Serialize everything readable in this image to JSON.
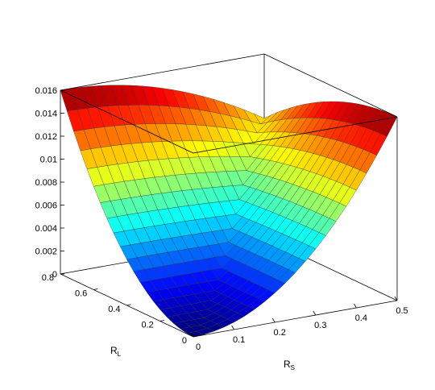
{
  "chart_data": {
    "type": "surface3d",
    "title": "",
    "x_axis": {
      "label_main": "R",
      "label_sub": "S",
      "range": [
        0,
        0.5
      ],
      "ticks": [
        "0",
        "0.1",
        "0.2",
        "0.3",
        "0.4",
        "0.5"
      ]
    },
    "y_axis": {
      "label_main": "R",
      "label_sub": "L",
      "range": [
        0,
        0.8
      ],
      "ticks": [
        "0",
        "0.2",
        "0.4",
        "0.6",
        "0.8"
      ]
    },
    "z_axis": {
      "label": "",
      "range": [
        0,
        0.016
      ],
      "ticks": [
        "0",
        "0.002",
        "0.004",
        "0.006",
        "0.008",
        "0.01",
        "0.012",
        "0.014",
        "0.016"
      ]
    },
    "surface": {
      "description_of_shape": "valley with minimum near the low corner of R_S and R_L; rises to ~0.016 at R_S=0 high R_L and at R_S=0.5 low R_L",
      "x": [
        0,
        0.025,
        0.05,
        0.075,
        0.1,
        0.125,
        0.15,
        0.175,
        0.2,
        0.225,
        0.25,
        0.275,
        0.3,
        0.325,
        0.35,
        0.375,
        0.4,
        0.425,
        0.45,
        0.475,
        0.5
      ],
      "y": [
        0,
        0.04,
        0.08,
        0.12,
        0.16,
        0.2,
        0.24,
        0.28,
        0.32,
        0.36,
        0.4,
        0.44,
        0.48,
        0.52,
        0.56,
        0.6,
        0.64,
        0.68,
        0.72,
        0.76,
        0.8
      ],
      "z_min": 0,
      "z_max": 0.016
    },
    "colormap": "jet",
    "grid": false,
    "box": true,
    "colors": {
      "jet_low": "#0000ff",
      "jet_mid_low": "#00ffff",
      "jet_mid": "#80ff80",
      "jet_mid_high": "#ffff00",
      "jet_high": "#ff0000",
      "edge": "#333333"
    }
  }
}
